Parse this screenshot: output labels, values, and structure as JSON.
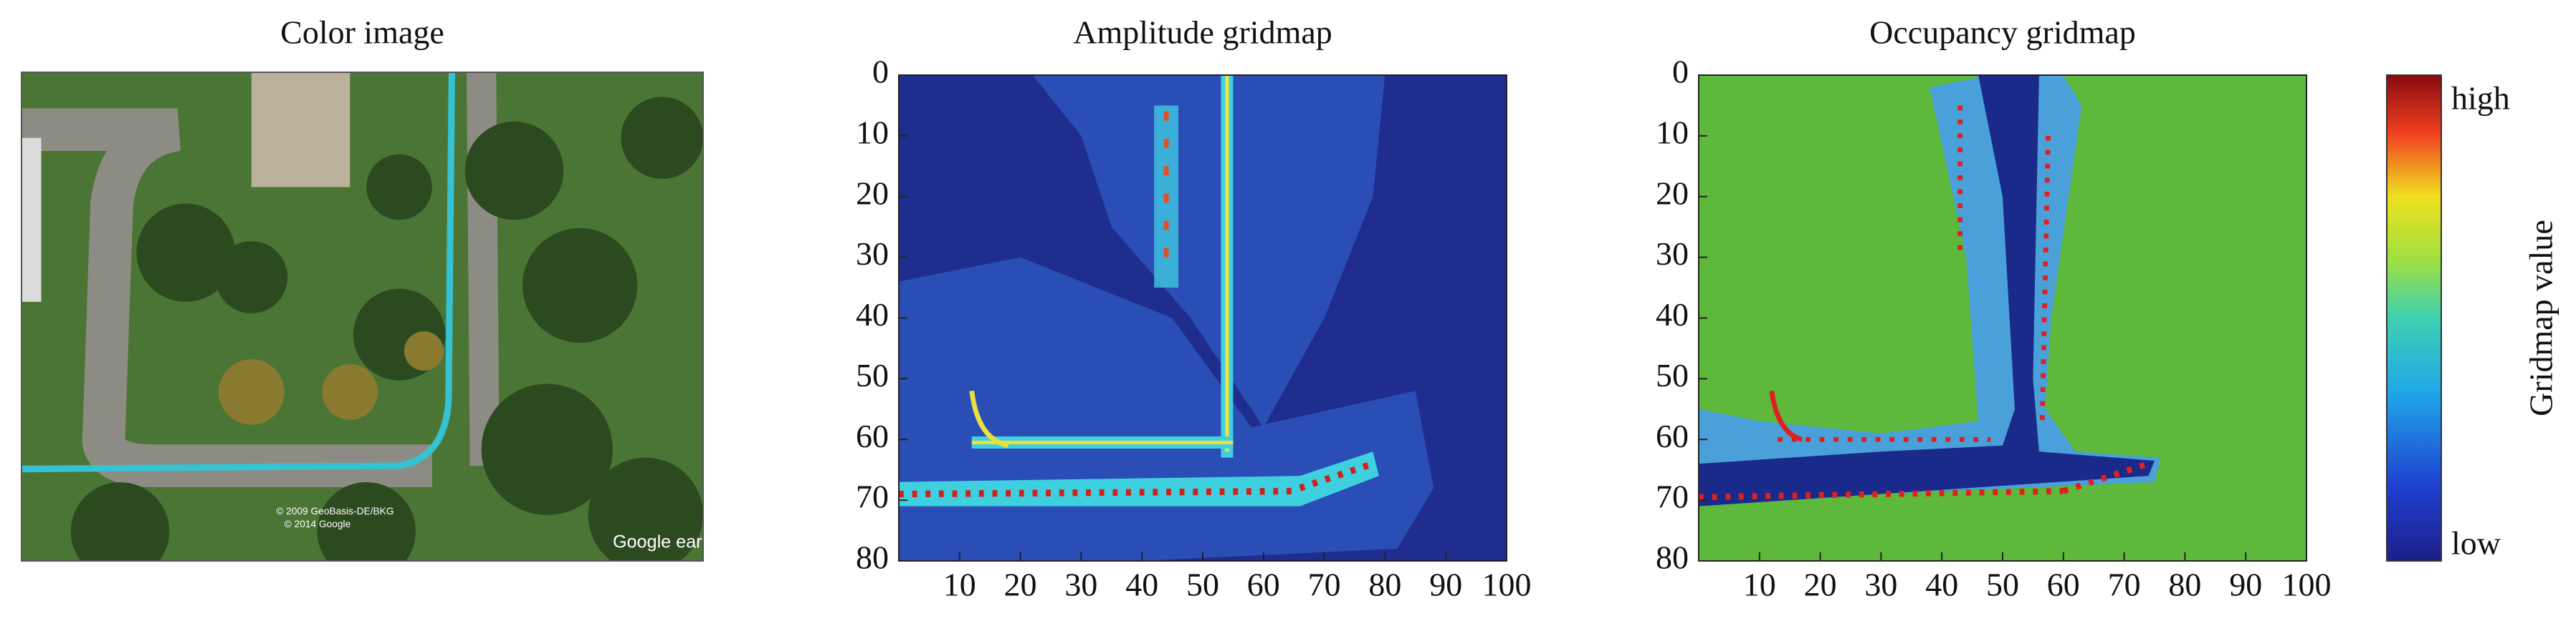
{
  "chart_data": [
    {
      "type": "image",
      "title": "Color image",
      "annotations": [
        "© 2009 GeoBasis-DE/BKG",
        "© 2014 Google",
        "Google earth"
      ]
    },
    {
      "type": "heatmap",
      "title": "Amplitude gridmap",
      "xlim": [
        0,
        100
      ],
      "ylim": [
        0,
        80
      ],
      "y_inverted": true,
      "xticks": [
        10,
        20,
        30,
        40,
        50,
        60,
        70,
        80,
        90,
        100
      ],
      "yticks": [
        0,
        10,
        20,
        30,
        40,
        50,
        60,
        70,
        80
      ]
    },
    {
      "type": "heatmap",
      "title": "Occupancy gridmap",
      "xlim": [
        0,
        100
      ],
      "ylim": [
        0,
        80
      ],
      "y_inverted": true,
      "xticks": [
        10,
        20,
        30,
        40,
        50,
        60,
        70,
        80,
        90,
        100
      ],
      "yticks": [
        0,
        10,
        20,
        30,
        40,
        50,
        60,
        70,
        80
      ]
    },
    {
      "type": "colorbar",
      "label": "Gridmap value",
      "top_label": "high",
      "bottom_label": "low"
    }
  ]
}
